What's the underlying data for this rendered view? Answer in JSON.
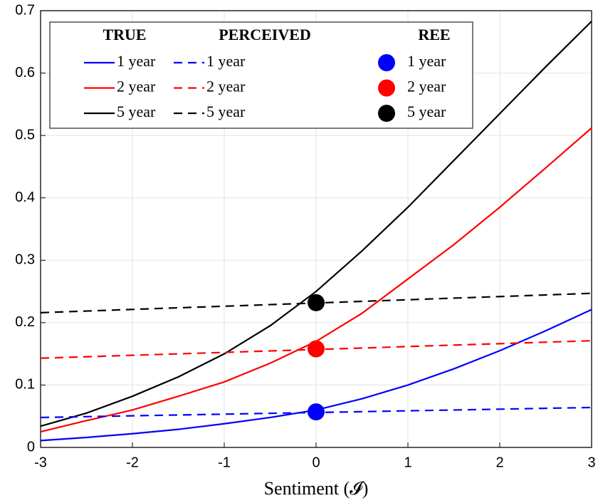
{
  "chart_data": {
    "type": "line",
    "xlabel": "Sentiment (𝓘)",
    "xlim": [
      -3,
      3
    ],
    "xticks": [
      -3,
      -2,
      -1,
      0,
      1,
      2,
      3
    ],
    "ylim": [
      0,
      0.7
    ],
    "yticks": [
      0,
      0.1,
      0.2,
      0.3,
      0.4,
      0.5,
      0.6,
      0.7
    ],
    "grid": true,
    "legend_titles": [
      "TRUE",
      "PERCEIVED",
      "REE"
    ],
    "x": [
      -3,
      -2.5,
      -2,
      -1.5,
      -1,
      -0.5,
      0,
      0.5,
      1,
      1.5,
      2,
      2.5,
      3
    ],
    "series": [
      {
        "name": "1 year",
        "color": "#0000ff",
        "style": "solid",
        "values": [
          0.011,
          0.016,
          0.022,
          0.029,
          0.038,
          0.048,
          0.06,
          0.078,
          0.1,
          0.126,
          0.155,
          0.187,
          0.221
        ]
      },
      {
        "name": "2 year",
        "color": "#ff0000",
        "style": "solid",
        "values": [
          0.025,
          0.043,
          0.06,
          0.082,
          0.105,
          0.135,
          0.17,
          0.215,
          0.27,
          0.325,
          0.385,
          0.448,
          0.512
        ]
      },
      {
        "name": "5 year",
        "color": "#000000",
        "style": "solid",
        "values": [
          0.034,
          0.055,
          0.082,
          0.113,
          0.15,
          0.195,
          0.25,
          0.315,
          0.385,
          0.46,
          0.535,
          0.61,
          0.683
        ]
      },
      {
        "name": "1 year",
        "color": "#0000ff",
        "style": "dashed",
        "values": [
          0.048,
          0.0493,
          0.0507,
          0.052,
          0.0533,
          0.0547,
          0.056,
          0.0573,
          0.0587,
          0.06,
          0.0613,
          0.0627,
          0.064
        ]
      },
      {
        "name": "2 year",
        "color": "#ff0000",
        "style": "dashed",
        "values": [
          0.143,
          0.1453,
          0.1477,
          0.15,
          0.1523,
          0.1547,
          0.157,
          0.1593,
          0.1617,
          0.164,
          0.1663,
          0.1687,
          0.171
        ]
      },
      {
        "name": "5 year",
        "color": "#000000",
        "style": "dashed",
        "values": [
          0.216,
          0.2186,
          0.2212,
          0.2238,
          0.2263,
          0.2289,
          0.2315,
          0.2341,
          0.2367,
          0.2393,
          0.2418,
          0.2444,
          0.247
        ]
      },
      {
        "name": "1 year",
        "color": "#0000ff",
        "style": "marker",
        "x": [
          0
        ],
        "values": [
          0.057
        ]
      },
      {
        "name": "2 year",
        "color": "#ff0000",
        "style": "marker",
        "x": [
          0
        ],
        "values": [
          0.158
        ]
      },
      {
        "name": "5 year",
        "color": "#000000",
        "style": "marker",
        "x": [
          0
        ],
        "values": [
          0.232
        ]
      }
    ]
  }
}
